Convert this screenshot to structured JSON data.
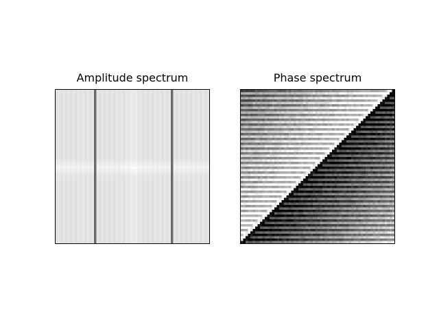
{
  "chart_data": [
    {
      "type": "heatmap",
      "title": "Amplitude spectrum",
      "colormap": "gray",
      "grid_size": [
        64,
        64
      ],
      "axes_visible": false,
      "description_values": {
        "background_level": 0.89,
        "center_cross_level": 0.95,
        "center_peak_level": 1.0,
        "dark_column_level": 0.42,
        "dark_column_indices": [
          16,
          48
        ]
      }
    },
    {
      "type": "heatmap",
      "title": "Phase spectrum",
      "colormap": "gray",
      "grid_size": [
        64,
        64
      ],
      "axes_visible": false,
      "description_values": {
        "diagonal_split": "anti-diagonal",
        "upper_left_base_level": 0.45,
        "lower_right_base_level": 0.35,
        "texture": "checker-diamond"
      }
    }
  ]
}
